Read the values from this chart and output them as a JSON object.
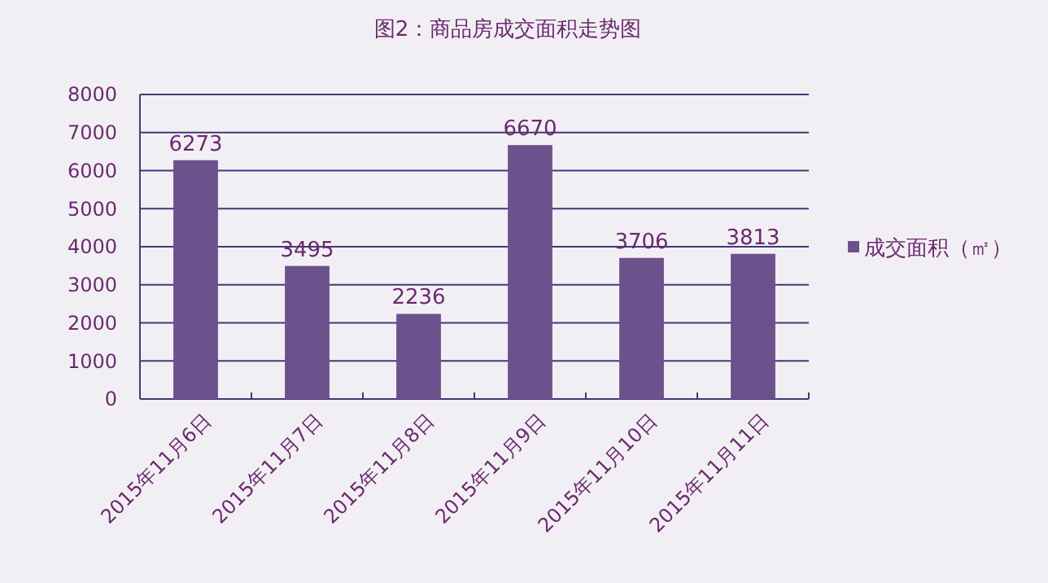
{
  "chart_data": {
    "type": "bar",
    "title": "图2：商品房成交面积走势图",
    "categories": [
      "2015年11月6日",
      "2015年11月7日",
      "2015年11月8日",
      "2015年11月9日",
      "2015年11月10日",
      "2015年11月11日"
    ],
    "series": [
      {
        "name": "成交面积（㎡）",
        "color": "#6b528c",
        "values": [
          6273,
          3495,
          2236,
          6670,
          3706,
          3813
        ]
      }
    ],
    "ylim": [
      0,
      8000
    ],
    "yticks": [
      0,
      1000,
      2000,
      3000,
      4000,
      5000,
      6000,
      7000,
      8000
    ],
    "grid": "y",
    "legend": "right",
    "data_labels": true
  }
}
